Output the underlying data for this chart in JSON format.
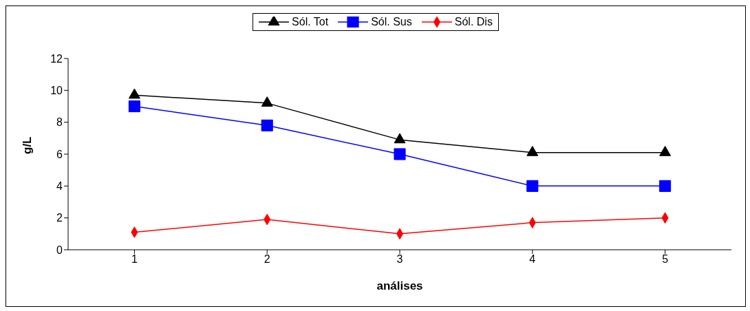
{
  "chart_data": {
    "type": "line",
    "xlabel": "análises",
    "ylabel": "g/L",
    "categories": [
      "1",
      "2",
      "3",
      "4",
      "5"
    ],
    "series": [
      {
        "name": "Sól. Tot",
        "color": "#000000",
        "marker": "triangle",
        "values": [
          9.7,
          9.2,
          6.9,
          6.1,
          6.1
        ]
      },
      {
        "name": "Sól. Sus",
        "color": "#0000ff",
        "marker": "square",
        "values": [
          9.0,
          7.8,
          6.0,
          4.0,
          4.0
        ]
      },
      {
        "name": "Sól. Dis",
        "color": "#ff0000",
        "marker": "diamond",
        "values": [
          1.1,
          1.9,
          1.0,
          1.7,
          2.0
        ]
      }
    ],
    "ylim": [
      0,
      12
    ],
    "yticks": [
      0,
      2,
      4,
      6,
      8,
      10,
      12
    ],
    "grid": false,
    "legend": "top",
    "line_style": "solid"
  }
}
